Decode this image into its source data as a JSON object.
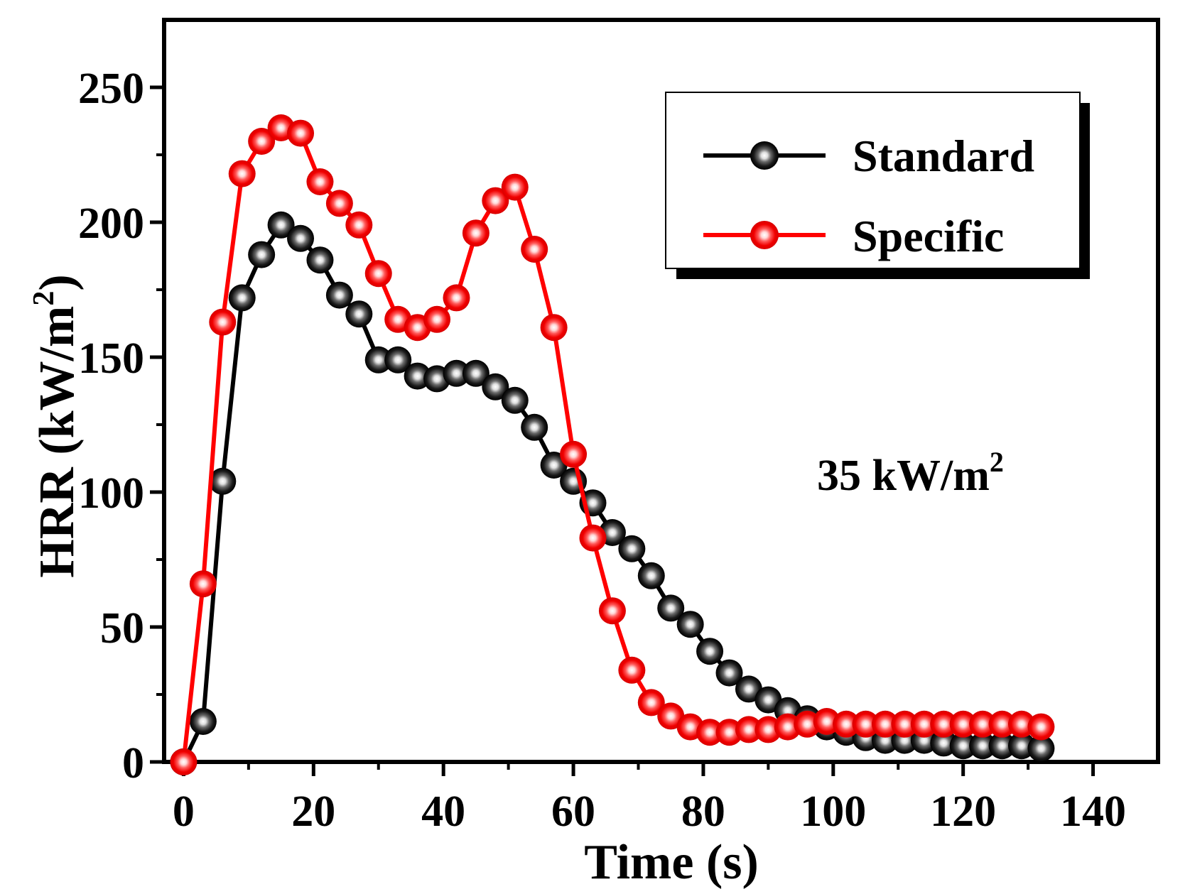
{
  "chart_data": {
    "type": "line",
    "title": "",
    "xlabel": "Time (s)",
    "ylabel": "HRR (kW/m",
    "ylabel_sup": "2",
    "ylabel_close": ")",
    "xlim": [
      -3,
      150
    ],
    "ylim": [
      0,
      275
    ],
    "xticks": [
      0,
      20,
      40,
      60,
      80,
      100,
      120,
      140
    ],
    "yticks": [
      0,
      50,
      100,
      150,
      200,
      250
    ],
    "annotation": {
      "text": "35 kW/m",
      "sup": "2"
    },
    "legend_position": "top-right",
    "series": [
      {
        "name": "Standard",
        "color": "#000000",
        "x": [
          0,
          3,
          6,
          9,
          12,
          15,
          18,
          21,
          24,
          27,
          30,
          33,
          36,
          39,
          42,
          45,
          48,
          51,
          54,
          57,
          60,
          63,
          66,
          69,
          72,
          75,
          78,
          81,
          84,
          87,
          90,
          93,
          96,
          99,
          102,
          105,
          108,
          111,
          114,
          117,
          120,
          123,
          126,
          129,
          132
        ],
        "values": [
          0,
          15,
          104,
          172,
          188,
          199,
          194,
          186,
          173,
          166,
          149,
          149,
          143,
          142,
          144,
          144,
          139,
          134,
          124,
          110,
          104,
          96,
          85,
          79,
          69,
          57,
          51,
          41,
          33,
          27,
          23,
          19,
          16,
          13,
          11,
          9,
          8,
          8,
          8,
          7,
          6,
          6,
          6,
          6,
          5
        ]
      },
      {
        "name": "Specific",
        "color": "#ff0000",
        "x": [
          0,
          3,
          6,
          9,
          12,
          15,
          18,
          21,
          24,
          27,
          30,
          33,
          36,
          39,
          42,
          45,
          48,
          51,
          54,
          57,
          60,
          63,
          66,
          69,
          72,
          75,
          78,
          81,
          84,
          87,
          90,
          93,
          96,
          99,
          102,
          105,
          108,
          111,
          114,
          117,
          120,
          123,
          126,
          129,
          132
        ],
        "values": [
          0,
          66,
          163,
          218,
          230,
          235,
          233,
          215,
          207,
          199,
          181,
          164,
          161,
          164,
          172,
          196,
          208,
          213,
          190,
          161,
          114,
          83,
          56,
          34,
          22,
          17,
          13,
          11,
          11,
          12,
          12,
          13,
          14,
          15,
          14,
          14,
          14,
          14,
          14,
          14,
          14,
          14,
          14,
          14,
          13
        ]
      }
    ]
  }
}
